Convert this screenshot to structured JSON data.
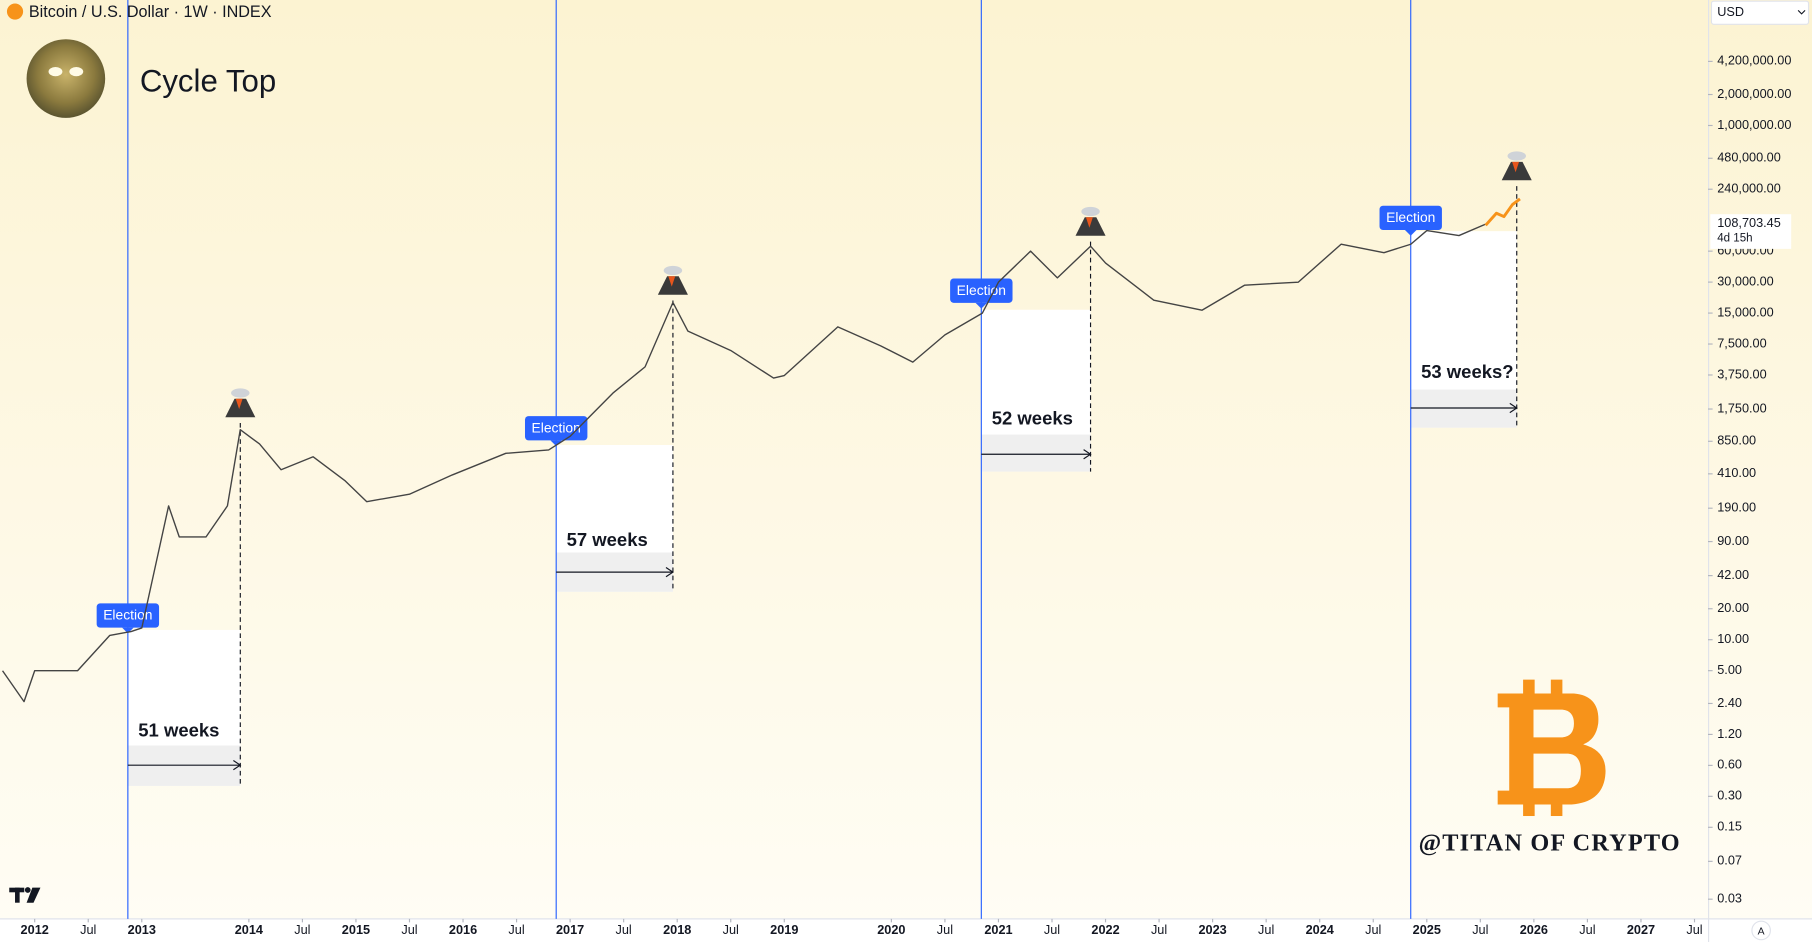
{
  "chart_data": {
    "type": "line",
    "header": "Bitcoin / U.S. Dollar · 1W · INDEX",
    "currency": "USD",
    "title": "Cycle Top",
    "watermark": "@TITAN OF CRYPTO",
    "autoscale": "A",
    "log_scale": true,
    "grid": false,
    "color": "#444444",
    "x": [
      2011.7,
      2011.9,
      2012.0,
      2012.4,
      2012.7,
      2012.9,
      2013.0,
      2013.25,
      2013.35,
      2013.6,
      2013.8,
      2013.92,
      2014.1,
      2014.3,
      2014.6,
      2014.9,
      2015.1,
      2015.5,
      2015.9,
      2016.4,
      2016.8,
      2017.0,
      2017.4,
      2017.7,
      2017.96,
      2018.1,
      2018.5,
      2018.9,
      2019.0,
      2019.5,
      2019.9,
      2020.2,
      2020.5,
      2020.85,
      2021.0,
      2021.3,
      2021.55,
      2021.86,
      2022.0,
      2022.45,
      2022.9,
      2023.3,
      2023.8,
      2024.2,
      2024.6,
      2024.85,
      2025.0,
      2025.3,
      2025.55
    ],
    "values": [
      5,
      2.5,
      5,
      5,
      11,
      12,
      13,
      200,
      100,
      100,
      200,
      1100,
      800,
      450,
      600,
      350,
      220,
      260,
      400,
      650,
      700,
      950,
      2500,
      4500,
      19000,
      10000,
      6500,
      3500,
      3700,
      11000,
      7200,
      5000,
      9200,
      15000,
      30000,
      60000,
      33000,
      67000,
      46000,
      20000,
      16000,
      28000,
      30000,
      70000,
      58000,
      70000,
      95000,
      85000,
      110000
    ],
    "projection": {
      "color": "#f7931a",
      "x": [
        2025.55,
        2025.65,
        2025.72,
        2025.8,
        2025.87
      ],
      "values": [
        107000,
        140000,
        130000,
        170000,
        193000
      ]
    },
    "last_price": {
      "value": 108703.45,
      "label": "108,703.45"
    },
    "countdown": "4d 15h",
    "cycles": [
      {
        "election_label": "Election",
        "election_x": 2012.87,
        "top_x": 2013.92,
        "weeks_label": "51 weeks"
      },
      {
        "election_label": "Election",
        "election_x": 2016.87,
        "top_x": 2017.96,
        "weeks_label": "57 weeks"
      },
      {
        "election_label": "Election",
        "election_x": 2020.84,
        "top_x": 2021.86,
        "weeks_label": "52 weeks"
      },
      {
        "election_label": "Election",
        "election_x": 2024.85,
        "top_x": 2025.84,
        "weeks_label": "53 weeks?"
      }
    ],
    "xlim": [
      2011.676,
      2027.626
    ],
    "xticks": [
      2012,
      {
        "value": 2012.5,
        "label": "Jul"
      },
      2013,
      2014,
      {
        "value": 2014.5,
        "label": "Jul"
      },
      2015,
      {
        "value": 2015.5,
        "label": "Jul"
      },
      2016,
      {
        "value": 2016.5,
        "label": "Jul"
      },
      2017,
      {
        "value": 2017.5,
        "label": "Jul"
      },
      2018,
      {
        "value": 2018.5,
        "label": "Jul"
      },
      2019,
      2020,
      {
        "value": 2020.5,
        "label": "Jul"
      },
      2021,
      {
        "value": 2021.5,
        "label": "Jul"
      },
      2022,
      {
        "value": 2022.5,
        "label": "Jul"
      },
      2023,
      {
        "value": 2023.5,
        "label": "Jul"
      },
      2024,
      {
        "value": 2024.5,
        "label": "Jul"
      },
      2025,
      {
        "value": 2025.5,
        "label": "Jul"
      },
      2026,
      {
        "value": 2026.5,
        "label": "Jul"
      },
      2027,
      {
        "value": 2027.5,
        "label": "Jul"
      }
    ],
    "ylim": [
      0.0193,
      16600000
    ],
    "yticks": [
      {
        "value": 4200000,
        "label": "4,200,000.00"
      },
      {
        "value": 2000000,
        "label": "2,000,000.00"
      },
      {
        "value": 1000000,
        "label": "1,000,000.00"
      },
      {
        "value": 480000,
        "label": "480,000.00"
      },
      {
        "value": 240000,
        "label": "240,000.00"
      },
      {
        "value": 60000,
        "label": "60,000.00"
      },
      {
        "value": 30000,
        "label": "30,000.00"
      },
      {
        "value": 15000,
        "label": "15,000.00"
      },
      {
        "value": 7500,
        "label": "7,500.00"
      },
      {
        "value": 3750,
        "label": "3,750.00"
      },
      {
        "value": 1750,
        "label": "1,750.00"
      },
      {
        "value": 850,
        "label": "850.00"
      },
      {
        "value": 410,
        "label": "410.00"
      },
      {
        "value": 190,
        "label": "190.00"
      },
      {
        "value": 90,
        "label": "90.00"
      },
      {
        "value": 42,
        "label": "42.00"
      },
      {
        "value": 20,
        "label": "20.00"
      },
      {
        "value": 10,
        "label": "10.00"
      },
      {
        "value": 5,
        "label": "5.00"
      },
      {
        "value": 2.4,
        "label": "2.40"
      },
      {
        "value": 1.2,
        "label": "1.20"
      },
      {
        "value": 0.6,
        "label": "0.60"
      },
      {
        "value": 0.3,
        "label": "0.30"
      },
      {
        "value": 0.15,
        "label": "0.15"
      },
      {
        "value": 0.07,
        "label": "0.07"
      },
      {
        "value": 0.03,
        "label": "0.03"
      }
    ]
  }
}
